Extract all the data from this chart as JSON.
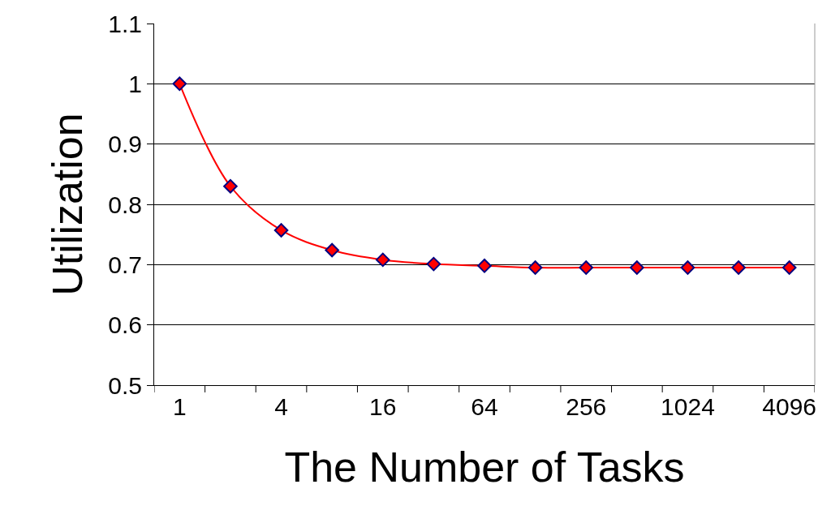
{
  "chart_data": {
    "type": "line",
    "xlabel": "The Number of Tasks",
    "ylabel": "Utilization",
    "categories": [
      "1",
      null,
      "4",
      null,
      "16",
      null,
      "64",
      null,
      "256",
      null,
      "1024",
      null,
      "4096"
    ],
    "series": [
      {
        "color": "#ff0000",
        "values": [
          1.0,
          0.83,
          0.757,
          0.724,
          0.708,
          0.701,
          0.698,
          0.695,
          0.695,
          0.695,
          0.695,
          0.695,
          0.695
        ]
      }
    ],
    "ylim": [
      0.5,
      1.1
    ],
    "yticks": [
      0.5,
      0.6,
      0.7,
      0.8,
      0.9,
      1,
      1.1
    ],
    "grid": "y",
    "marker": "diamond",
    "line_style": "solid"
  }
}
